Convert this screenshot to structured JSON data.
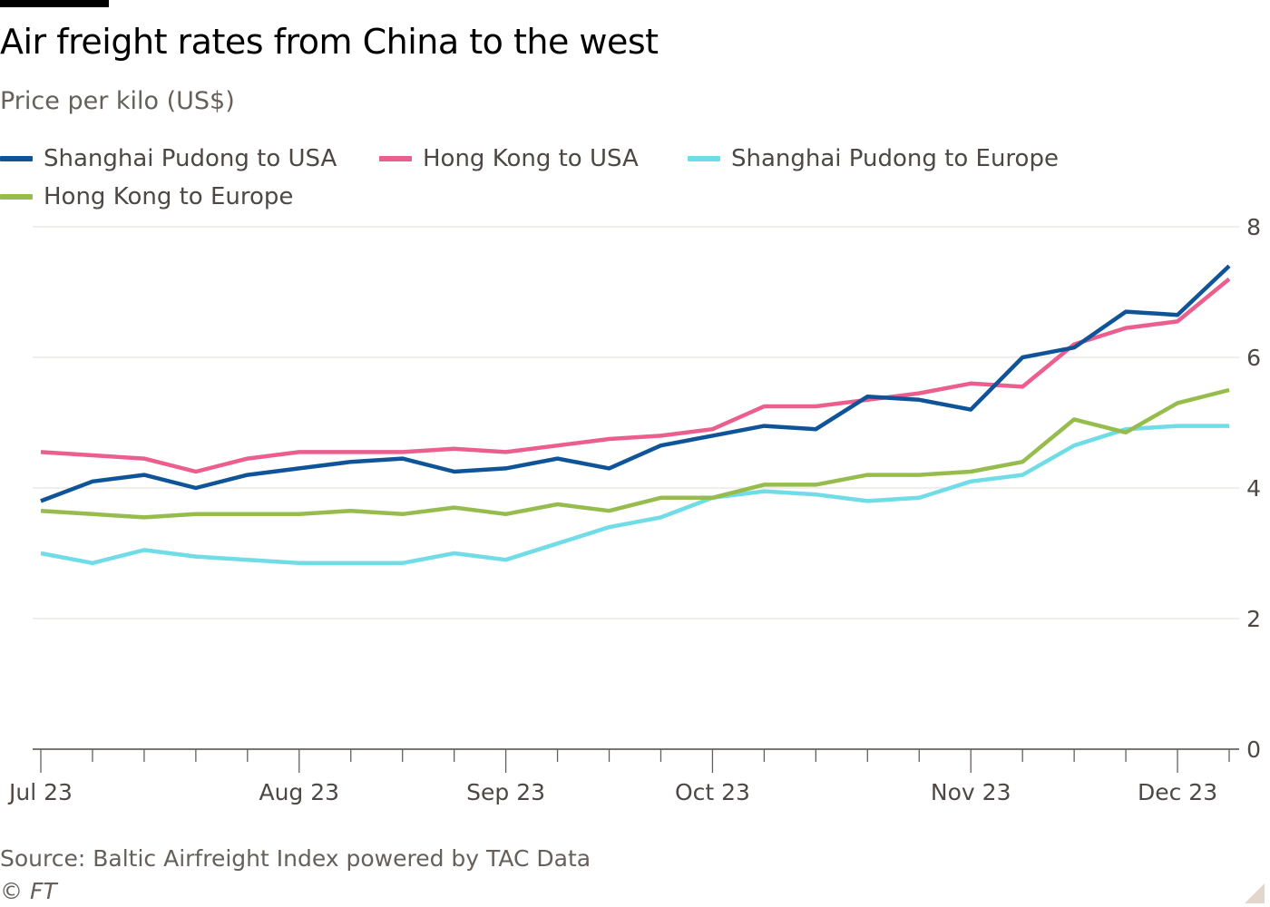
{
  "header": {
    "title": "Air freight rates from China to the west",
    "subtitle": "Price per kilo (US$)"
  },
  "legend": [
    {
      "label": "Shanghai Pudong to USA",
      "color": "#0f5499"
    },
    {
      "label": "Hong Kong to USA",
      "color": "#eb5e8d"
    },
    {
      "label": "Shanghai Pudong to Europe",
      "color": "#70dce6"
    },
    {
      "label": "Hong Kong to Europe",
      "color": "#96bc4d"
    }
  ],
  "footer": {
    "source": "Source: Baltic Airfreight Index powered by TAC Data",
    "copyright": "© FT"
  },
  "chart_data": {
    "type": "line",
    "title": "Air freight rates from China to the west",
    "subtitle": "Price per kilo (US$)",
    "xlabel": "",
    "ylabel": "",
    "x_axis_labels": [
      "Jul 23",
      "Aug 23",
      "Sep 23",
      "Oct 23",
      "Nov 23",
      "Dec 23"
    ],
    "x_label_week_index": [
      0,
      5,
      9,
      13,
      18,
      22
    ],
    "y_ticks": [
      0,
      2,
      4,
      6,
      8
    ],
    "ylim": [
      0,
      8
    ],
    "y_axis_position": "right",
    "grid": true,
    "legend_position": "top",
    "week_count": 24,
    "series": [
      {
        "name": "Shanghai Pudong to USA",
        "color": "#0f5499",
        "values": [
          3.8,
          4.1,
          4.2,
          4.0,
          4.2,
          4.3,
          4.4,
          4.45,
          4.25,
          4.3,
          4.45,
          4.3,
          4.65,
          4.8,
          4.95,
          4.9,
          5.4,
          5.35,
          5.2,
          6.0,
          6.15,
          6.7,
          6.65,
          7.4
        ]
      },
      {
        "name": "Hong Kong to USA",
        "color": "#eb5e8d",
        "values": [
          4.55,
          4.5,
          4.45,
          4.25,
          4.45,
          4.55,
          4.55,
          4.55,
          4.6,
          4.55,
          4.65,
          4.75,
          4.8,
          4.9,
          5.25,
          5.25,
          5.35,
          5.45,
          5.6,
          5.55,
          6.2,
          6.45,
          6.55,
          7.2
        ]
      },
      {
        "name": "Shanghai Pudong to Europe",
        "color": "#70dce6",
        "values": [
          3.0,
          2.85,
          3.05,
          2.95,
          2.9,
          2.85,
          2.85,
          2.85,
          3.0,
          2.9,
          3.15,
          3.4,
          3.55,
          3.85,
          3.95,
          3.9,
          3.8,
          3.85,
          4.1,
          4.2,
          4.65,
          4.9,
          4.95,
          4.95
        ]
      },
      {
        "name": "Hong Kong to Europe",
        "color": "#96bc4d",
        "values": [
          3.65,
          3.6,
          3.55,
          3.6,
          3.6,
          3.6,
          3.65,
          3.6,
          3.7,
          3.6,
          3.75,
          3.65,
          3.85,
          3.85,
          4.05,
          4.05,
          4.2,
          4.2,
          4.25,
          4.4,
          5.05,
          4.85,
          5.3,
          5.5
        ]
      }
    ]
  }
}
